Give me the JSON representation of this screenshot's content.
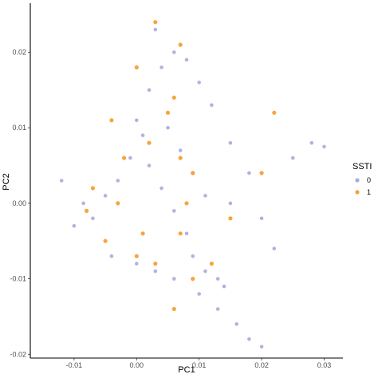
{
  "chart_data": {
    "type": "scatter",
    "title": "",
    "xlabel": "PC1",
    "ylabel": "PC2",
    "xlim": [
      -0.017,
      0.033
    ],
    "ylim": [
      -0.0205,
      0.0265
    ],
    "x_ticks": [
      -0.01,
      0.0,
      0.01,
      0.02,
      0.03
    ],
    "x_tick_labels": [
      "-0.01",
      "0.00",
      "0.01",
      "0.02",
      "0.03"
    ],
    "y_ticks": [
      -0.02,
      -0.01,
      0.0,
      0.01,
      0.02
    ],
    "y_tick_labels": [
      "-0.02",
      "-0.01",
      "0.00",
      "0.01",
      "0.02"
    ],
    "grid": false,
    "legend": {
      "title": "SSTI",
      "placement": "right",
      "entries": [
        {
          "label": "0",
          "color": "#6f74c4"
        },
        {
          "label": "1",
          "color": "#f5a131"
        }
      ]
    },
    "series": [
      {
        "name": "0",
        "color": "#6f74c4",
        "points": [
          [
            -0.0085,
            0.0
          ],
          [
            -0.007,
            -0.002
          ],
          [
            -0.005,
            0.001
          ],
          [
            -0.003,
            0.003
          ],
          [
            -0.001,
            0.006
          ],
          [
            0.001,
            0.009
          ],
          [
            0.0,
            0.011
          ],
          [
            0.002,
            0.005
          ],
          [
            0.004,
            0.002
          ],
          [
            0.006,
            -0.001
          ],
          [
            0.008,
            -0.004
          ],
          [
            0.009,
            -0.007
          ],
          [
            0.011,
            -0.009
          ],
          [
            0.013,
            -0.01
          ],
          [
            0.014,
            -0.011
          ],
          [
            0.002,
            0.015
          ],
          [
            0.004,
            0.018
          ],
          [
            0.006,
            0.02
          ],
          [
            0.008,
            0.019
          ],
          [
            0.01,
            0.016
          ],
          [
            0.012,
            0.013
          ],
          [
            0.015,
            0.008
          ],
          [
            0.018,
            0.004
          ],
          [
            0.02,
            -0.002
          ],
          [
            0.022,
            -0.006
          ],
          [
            0.025,
            0.006
          ],
          [
            0.028,
            0.008
          ],
          [
            0.03,
            0.0075
          ],
          [
            -0.012,
            0.003
          ],
          [
            -0.01,
            -0.003
          ],
          [
            -0.004,
            -0.007
          ],
          [
            0.0,
            -0.008
          ],
          [
            0.003,
            -0.009
          ],
          [
            0.006,
            -0.01
          ],
          [
            0.01,
            -0.012
          ],
          [
            0.013,
            -0.014
          ],
          [
            0.016,
            -0.016
          ],
          [
            0.018,
            -0.018
          ],
          [
            0.02,
            -0.019
          ],
          [
            0.015,
            0.0
          ],
          [
            0.005,
            0.01
          ],
          [
            0.007,
            0.007
          ],
          [
            0.009,
            0.004
          ],
          [
            0.011,
            0.001
          ],
          [
            0.003,
            0.023
          ]
        ]
      },
      {
        "name": "1",
        "color": "#f5a131",
        "points": [
          [
            0.003,
            0.024
          ],
          [
            0.007,
            0.021
          ],
          [
            0.0,
            0.018
          ],
          [
            0.006,
            0.014
          ],
          [
            0.007,
            0.006
          ],
          [
            0.009,
            0.004
          ],
          [
            0.002,
            0.008
          ],
          [
            -0.007,
            0.002
          ],
          [
            -0.003,
            0.0
          ],
          [
            -0.008,
            -0.001
          ],
          [
            0.001,
            -0.004
          ],
          [
            0.007,
            -0.004
          ],
          [
            0.009,
            -0.01
          ],
          [
            0.003,
            -0.008
          ],
          [
            -0.005,
            -0.005
          ],
          [
            0.012,
            -0.008
          ],
          [
            0.015,
            -0.002
          ],
          [
            0.022,
            0.012
          ],
          [
            0.02,
            0.004
          ],
          [
            -0.004,
            0.011
          ],
          [
            0.0,
            -0.007
          ],
          [
            0.005,
            0.012
          ],
          [
            -0.002,
            0.006
          ],
          [
            0.006,
            -0.014
          ],
          [
            0.008,
            0.0
          ]
        ]
      }
    ]
  }
}
